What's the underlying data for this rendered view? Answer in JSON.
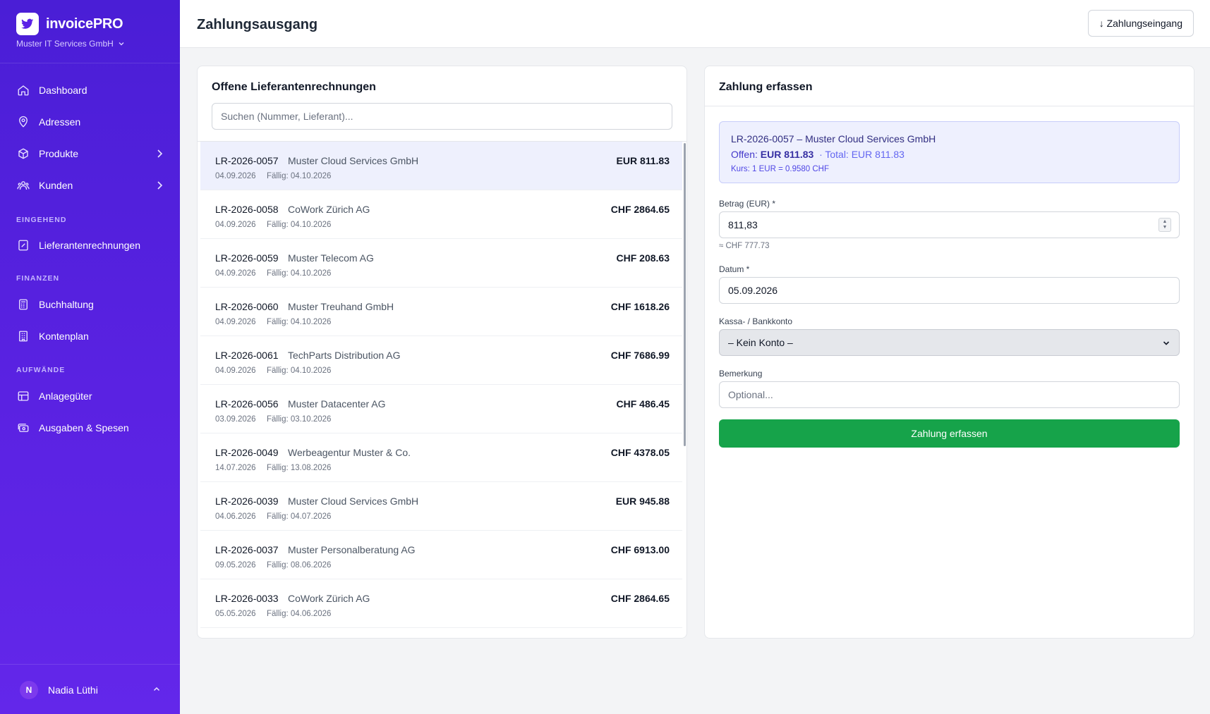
{
  "app": {
    "name": "invoicePRO",
    "company": "Muster IT Services GmbH"
  },
  "sidebar": {
    "items_top": [
      {
        "label": "Dashboard",
        "icon": "home-icon"
      },
      {
        "label": "Adressen",
        "icon": "map-pin-icon"
      },
      {
        "label": "Produkte",
        "icon": "box-icon",
        "has_chevron": true
      },
      {
        "label": "Kunden",
        "icon": "users-icon",
        "has_chevron": true
      }
    ],
    "section_incoming": "EINGEHEND",
    "items_incoming": [
      {
        "label": "Lieferantenrechnungen",
        "icon": "receipt-icon"
      }
    ],
    "section_finance": "FINANZEN",
    "items_finance": [
      {
        "label": "Buchhaltung",
        "icon": "calculator-icon"
      },
      {
        "label": "Kontenplan",
        "icon": "building-icon"
      }
    ],
    "section_expenses": "AUFWÄNDE",
    "items_expenses": [
      {
        "label": "Anlagegüter",
        "icon": "table-icon"
      },
      {
        "label": "Ausgaben & Spesen",
        "icon": "cash-icon"
      }
    ],
    "user": {
      "initial": "N",
      "name": "Nadia Lüthi"
    }
  },
  "header": {
    "title": "Zahlungsausgang",
    "switch_button": "↓ Zahlungseingang"
  },
  "invoices_panel": {
    "title": "Offene Lieferantenrechnungen",
    "search_placeholder": "Suchen (Nummer, Lieferant)...",
    "rows": [
      {
        "number": "LR-2026-0057",
        "supplier": "Muster Cloud Services GmbH",
        "amount": "EUR 811.83",
        "date": "04.09.2026",
        "due": "Fällig: 04.10.2026",
        "selected": true
      },
      {
        "number": "LR-2026-0058",
        "supplier": "CoWork Zürich AG",
        "amount": "CHF 2864.65",
        "date": "04.09.2026",
        "due": "Fällig: 04.10.2026"
      },
      {
        "number": "LR-2026-0059",
        "supplier": "Muster Telecom AG",
        "amount": "CHF 208.63",
        "date": "04.09.2026",
        "due": "Fällig: 04.10.2026"
      },
      {
        "number": "LR-2026-0060",
        "supplier": "Muster Treuhand GmbH",
        "amount": "CHF 1618.26",
        "date": "04.09.2026",
        "due": "Fällig: 04.10.2026"
      },
      {
        "number": "LR-2026-0061",
        "supplier": "TechParts Distribution AG",
        "amount": "CHF 7686.99",
        "date": "04.09.2026",
        "due": "Fällig: 04.10.2026"
      },
      {
        "number": "LR-2026-0056",
        "supplier": "Muster Datacenter AG",
        "amount": "CHF 486.45",
        "date": "03.09.2026",
        "due": "Fällig: 03.10.2026"
      },
      {
        "number": "LR-2026-0049",
        "supplier": "Werbeagentur Muster & Co.",
        "amount": "CHF 4378.05",
        "date": "14.07.2026",
        "due": "Fällig: 13.08.2026"
      },
      {
        "number": "LR-2026-0039",
        "supplier": "Muster Cloud Services GmbH",
        "amount": "EUR 945.88",
        "date": "04.06.2026",
        "due": "Fällig: 04.07.2026"
      },
      {
        "number": "LR-2026-0037",
        "supplier": "Muster Personalberatung AG",
        "amount": "CHF 6913.00",
        "date": "09.05.2026",
        "due": "Fällig: 08.06.2026"
      },
      {
        "number": "LR-2026-0033",
        "supplier": "CoWork Zürich AG",
        "amount": "CHF 2864.65",
        "date": "05.05.2026",
        "due": "Fällig: 04.06.2026"
      }
    ]
  },
  "payment_panel": {
    "title": "Zahlung erfassen",
    "selected_invoice": "LR-2026-0057 – Muster Cloud Services GmbH",
    "open_label": "Offen:",
    "open_amount": "EUR 811.83",
    "total": "· Total: EUR 811.83",
    "rate": "Kurs: 1 EUR = 0.9580 CHF",
    "amount_label": "Betrag (EUR) *",
    "amount_value": "811,83",
    "amount_hint": "≈ CHF 777.73",
    "date_label": "Datum *",
    "date_value": "05.09.2026",
    "account_label": "Kassa- / Bankkonto",
    "account_selected": "– Kein Konto –",
    "note_label": "Bemerkung",
    "note_placeholder": "Optional...",
    "submit_label": "Zahlung erfassen"
  },
  "colors": {
    "sidebar_gradient_start": "#4a1ed6",
    "sidebar_gradient_end": "#6327ea",
    "primary_green": "#16a34a",
    "selected_row": "#eef0fd",
    "info_box": "#eef0fe"
  }
}
